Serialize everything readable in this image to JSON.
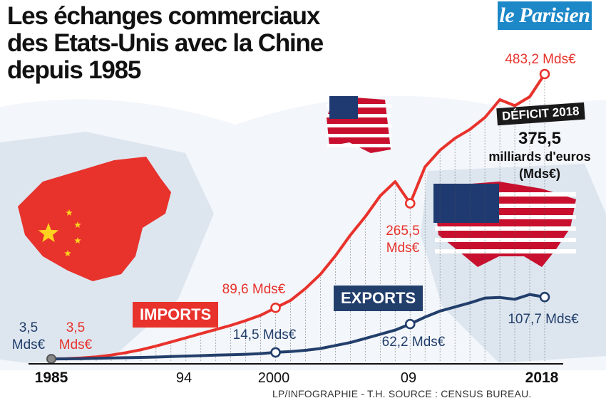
{
  "title_lines": [
    "Les échanges commerciaux",
    "des Etats-Unis avec la Chine",
    "depuis 1985"
  ],
  "logo": "le Parisien",
  "source": "LP/INFOGRAPHIE - T.H.  SOURCE : CENSUS BUREAU.",
  "colors": {
    "imports": "#e8322c",
    "exports": "#223e6b",
    "map": "#dde6ef",
    "ocean": "#ffffff"
  },
  "badges": {
    "imports": "IMPORTS",
    "exports": "EXPORTS"
  },
  "deficit": {
    "label": "DÉFICIT 2018",
    "value": "375,5",
    "unit_line1": "milliards d'euros",
    "unit_line2": "(Mds€)"
  },
  "chart_data": {
    "type": "line",
    "title": "Les échanges commerciaux des Etats-Unis avec la Chine depuis 1985",
    "xlabel": "",
    "ylabel": "",
    "x_ticks": [
      "1985",
      "94",
      "2000",
      "09",
      "2018"
    ],
    "x_tick_values": [
      1985,
      1994,
      2000,
      2009,
      2018
    ],
    "xlim": [
      1985,
      2018
    ],
    "ylim": [
      0,
      483.2
    ],
    "series": [
      {
        "name": "IMPORTS",
        "color": "#e8322c",
        "x": [
          1985,
          1986,
          1987,
          1988,
          1989,
          1990,
          1991,
          1992,
          1993,
          1994,
          1995,
          1996,
          1997,
          1998,
          1999,
          2000,
          2001,
          2002,
          2003,
          2004,
          2005,
          2006,
          2007,
          2008,
          2009,
          2010,
          2011,
          2012,
          2013,
          2014,
          2015,
          2016,
          2017,
          2018
        ],
        "values": [
          3.5,
          4,
          5,
          7,
          10,
          14,
          19,
          25,
          32,
          39,
          46,
          53,
          60,
          68,
          77,
          89.6,
          102,
          122,
          146,
          177,
          212,
          243,
          278,
          302,
          265.5,
          327,
          355,
          375,
          390,
          410,
          440,
          430,
          445,
          483.2
        ]
      },
      {
        "name": "EXPORTS",
        "color": "#223e6b",
        "x": [
          1985,
          1986,
          1987,
          1988,
          1989,
          1990,
          1991,
          1992,
          1993,
          1994,
          1995,
          1996,
          1997,
          1998,
          1999,
          2000,
          2001,
          2002,
          2003,
          2004,
          2005,
          2006,
          2007,
          2008,
          2009,
          2010,
          2011,
          2012,
          2013,
          2014,
          2015,
          2016,
          2017,
          2018
        ],
        "values": [
          3.5,
          3.6,
          3.8,
          4.5,
          5,
          5.5,
          6,
          6.6,
          7.5,
          8.3,
          9,
          9.8,
          10.5,
          11.3,
          12.5,
          14.5,
          16,
          18,
          21,
          26,
          31,
          38,
          45,
          52,
          62.2,
          74,
          84,
          91,
          98,
          106,
          107,
          104,
          112,
          107.7
        ]
      }
    ],
    "point_labels": [
      {
        "series": "EXPORTS",
        "x": 1985,
        "text": "3,5\nMds€"
      },
      {
        "series": "IMPORTS",
        "x": 1985,
        "text": "3,5\nMds€"
      },
      {
        "series": "IMPORTS",
        "x": 2000,
        "text": "89,6 Mds€"
      },
      {
        "series": "EXPORTS",
        "x": 2000,
        "text": "14,5 Mds€"
      },
      {
        "series": "IMPORTS",
        "x": 2009,
        "text": "265,5\nMds€"
      },
      {
        "series": "EXPORTS",
        "x": 2009,
        "text": "62,2 Mds€"
      },
      {
        "series": "IMPORTS",
        "x": 2018,
        "text": "483,2 Mds€"
      },
      {
        "series": "EXPORTS",
        "x": 2018,
        "text": "107,7 Mds€"
      }
    ],
    "grid": false
  }
}
